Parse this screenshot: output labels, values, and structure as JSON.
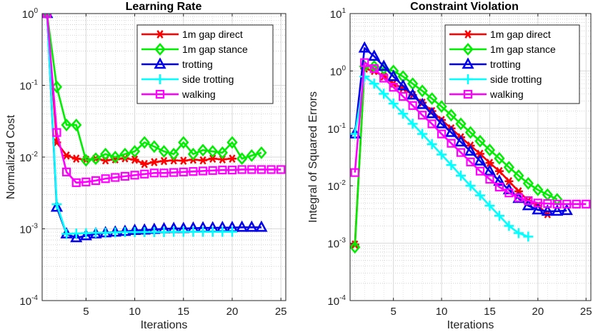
{
  "chart_data": [
    {
      "type": "line",
      "title": "Learning Rate",
      "xlabel": "Iterations",
      "ylabel": "Normalized Cost",
      "yscale": "log",
      "xlim": [
        0.5,
        25.5
      ],
      "ylim_exp": [
        -4,
        0
      ],
      "xticks": [
        5,
        10,
        15,
        20,
        25
      ],
      "yticks": [
        {
          "base": "10",
          "exp": "0"
        },
        {
          "base": "10",
          "exp": "-1"
        },
        {
          "base": "10",
          "exp": "-2"
        },
        {
          "base": "10",
          "exp": "-3"
        },
        {
          "base": "10",
          "exp": "-4"
        }
      ],
      "grid": true,
      "legend_position": "top-right",
      "series": [
        {
          "name": "1m gap direct",
          "color": "#ff0000",
          "marker": "asterisk",
          "values": [
            1,
            0.016,
            0.0105,
            0.0095,
            0.0092,
            0.0095,
            0.009,
            0.0093,
            0.0096,
            0.0092,
            0.008,
            0.0085,
            0.0088,
            0.009,
            0.0089,
            0.0092,
            0.009,
            0.0095,
            0.0093,
            0.0095
          ]
        },
        {
          "name": "1m gap stance",
          "color": "#00ee00",
          "marker": "diamond",
          "values": [
            1,
            0.095,
            0.028,
            0.028,
            0.009,
            0.0095,
            0.011,
            0.01,
            0.011,
            0.012,
            0.016,
            0.014,
            0.012,
            0.011,
            0.016,
            0.011,
            0.0125,
            0.012,
            0.0115,
            0.016,
            0.0095,
            0.0105,
            0.0115
          ]
        },
        {
          "name": "trotting",
          "color": "#0000ee",
          "marker": "triangle",
          "values": [
            1,
            0.002,
            0.00085,
            0.00075,
            0.0008,
            0.00085,
            0.00088,
            0.0009,
            0.00092,
            0.00095,
            0.00096,
            0.00098,
            0.001,
            0.00101,
            0.00101,
            0.00102,
            0.00103,
            0.00103,
            0.00104,
            0.00104,
            0.00105,
            0.00105,
            0.00105
          ]
        },
        {
          "name": "side trotting",
          "color": "#00ffff",
          "marker": "plus",
          "values": [
            1,
            0.0022,
            0.00085,
            0.00086,
            0.00087,
            0.00088,
            0.00088,
            0.00089,
            0.0009,
            0.0009,
            0.0009,
            0.0009,
            0.0009,
            0.00091,
            0.00091,
            0.00091,
            0.00091,
            0.00091,
            0.00091,
            0.00091
          ]
        },
        {
          "name": "walking",
          "color": "#ff00ff",
          "marker": "square",
          "values": [
            1,
            0.022,
            0.0062,
            0.0044,
            0.0045,
            0.0047,
            0.005,
            0.0052,
            0.0054,
            0.0056,
            0.0058,
            0.006,
            0.006,
            0.0061,
            0.0062,
            0.0063,
            0.0064,
            0.0065,
            0.0066,
            0.0066,
            0.0067,
            0.0067,
            0.0067,
            0.0067,
            0.0067
          ]
        }
      ]
    },
    {
      "type": "line",
      "title": "Constraint Violation",
      "xlabel": "Iterations",
      "ylabel": "Integral of Squared Errors",
      "yscale": "log",
      "xlim": [
        0.5,
        25.5
      ],
      "ylim_exp": [
        -4,
        1
      ],
      "xticks": [
        5,
        10,
        15,
        20,
        25
      ],
      "yticks": [
        {
          "base": "10",
          "exp": "1"
        },
        {
          "base": "10",
          "exp": "0"
        },
        {
          "base": "10",
          "exp": "-1"
        },
        {
          "base": "10",
          "exp": "-2"
        },
        {
          "base": "10",
          "exp": "-3"
        },
        {
          "base": "10",
          "exp": "-4"
        }
      ],
      "grid": true,
      "legend_position": "top-right",
      "series": [
        {
          "name": "1m gap direct",
          "color": "#ff0000",
          "marker": "asterisk",
          "values": [
            0.00095,
            1.1,
            1.0,
            0.8,
            0.6,
            0.5,
            0.38,
            0.28,
            0.2,
            0.14,
            0.1,
            0.07,
            0.05,
            0.036,
            0.025,
            0.018,
            0.012,
            0.008,
            0.0055,
            0.0045,
            0.0032
          ]
        },
        {
          "name": "1m gap stance",
          "color": "#00ee00",
          "marker": "diamond",
          "values": [
            0.00085,
            1.2,
            1.2,
            1.1,
            1.0,
            0.8,
            0.6,
            0.45,
            0.33,
            0.24,
            0.17,
            0.12,
            0.085,
            0.06,
            0.042,
            0.03,
            0.021,
            0.015,
            0.011,
            0.0085,
            0.007,
            0.0058
          ]
        },
        {
          "name": "trotting",
          "color": "#0000ee",
          "marker": "triangle",
          "values": [
            0.08,
            2.5,
            1.8,
            1.2,
            0.8,
            0.55,
            0.38,
            0.26,
            0.18,
            0.12,
            0.085,
            0.058,
            0.04,
            0.027,
            0.018,
            0.012,
            0.0085,
            0.006,
            0.0045,
            0.0038,
            0.0036,
            0.0036,
            0.0037
          ]
        },
        {
          "name": "side trotting",
          "color": "#00ffff",
          "marker": "plus",
          "values": [
            0.08,
            0.8,
            0.6,
            0.4,
            0.27,
            0.18,
            0.12,
            0.08,
            0.053,
            0.035,
            0.023,
            0.015,
            0.01,
            0.0068,
            0.0045,
            0.003,
            0.002,
            0.0015,
            0.0013
          ]
        },
        {
          "name": "walking",
          "color": "#ff00ff",
          "marker": "square",
          "values": [
            0.017,
            1.4,
            1.1,
            0.75,
            0.52,
            0.36,
            0.25,
            0.17,
            0.12,
            0.08,
            0.055,
            0.038,
            0.026,
            0.018,
            0.013,
            0.0095,
            0.0075,
            0.0062,
            0.0055,
            0.005,
            0.0049,
            0.0048,
            0.0048,
            0.0048,
            0.0048
          ]
        }
      ]
    }
  ]
}
